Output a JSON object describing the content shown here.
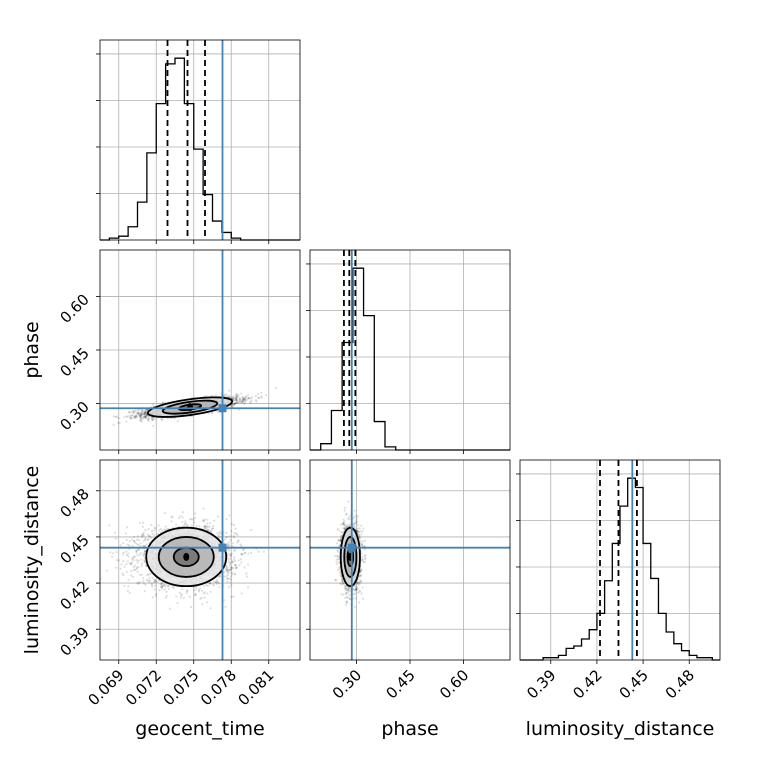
{
  "colors": {
    "truth": "#4682b4",
    "hist": "#000000",
    "grid": "#b0b0b0"
  },
  "chart_data": {
    "type": "corner",
    "parameters": [
      "geocent_time",
      "phase",
      "luminosity_distance"
    ],
    "truths": {
      "geocent_time": 0.0773,
      "phase": 0.287,
      "luminosity_distance": 0.443
    },
    "ranges": {
      "geocent_time": [
        0.0675,
        0.0835
      ],
      "phase": [
        0.17,
        0.73
      ],
      "luminosity_distance": [
        0.37,
        0.5
      ]
    },
    "ticks": {
      "geocent_time": [
        "0.069",
        "0.072",
        "0.075",
        "0.078",
        "0.081"
      ],
      "phase": [
        "0.30",
        "0.45",
        "0.60"
      ],
      "luminosity_distance": [
        "0.39",
        "0.42",
        "0.45",
        "0.48"
      ]
    },
    "quantiles": {
      "geocent_time": [
        0.0729,
        0.0745,
        0.0759
      ],
      "phase": [
        0.265,
        0.28,
        0.297
      ],
      "luminosity_distance": [
        0.422,
        0.434,
        0.446
      ]
    },
    "histograms": {
      "geocent_time": {
        "edges": [
          0.0675,
          0.06825,
          0.069,
          0.06975,
          0.0705,
          0.07125,
          0.072,
          0.07275,
          0.0735,
          0.07425,
          0.075,
          0.07575,
          0.0765,
          0.07725,
          0.078,
          0.07875,
          0.0795,
          0.08025,
          0.081,
          0.08175,
          0.0825,
          0.0835
        ],
        "counts": [
          0,
          1,
          2,
          7,
          20,
          46,
          72,
          93,
          96,
          72,
          48,
          24,
          10,
          4,
          1,
          0,
          0,
          0,
          0,
          0,
          0
        ]
      },
      "phase": {
        "edges": [
          0.17,
          0.2,
          0.23,
          0.26,
          0.29,
          0.32,
          0.35,
          0.38,
          0.41,
          0.44,
          0.47,
          0.5,
          0.53,
          0.56,
          0.59,
          0.62,
          0.65,
          0.68,
          0.71,
          0.73
        ],
        "counts": [
          0,
          4,
          25,
          68,
          115,
          85,
          18,
          2,
          0,
          0,
          0,
          0,
          0,
          0,
          0,
          0,
          0,
          0,
          0
        ]
      },
      "luminosity_distance": {
        "edges": [
          0.37,
          0.375,
          0.38,
          0.385,
          0.39,
          0.395,
          0.4,
          0.405,
          0.41,
          0.415,
          0.42,
          0.425,
          0.43,
          0.435,
          0.44,
          0.445,
          0.45,
          0.455,
          0.46,
          0.465,
          0.47,
          0.475,
          0.48,
          0.485,
          0.49,
          0.495,
          0.5
        ],
        "counts": [
          0,
          0,
          0,
          1,
          1,
          2,
          5,
          6,
          9,
          13,
          20,
          34,
          50,
          66,
          78,
          74,
          50,
          35,
          20,
          12,
          7,
          4,
          2,
          1,
          1,
          0
        ]
      }
    },
    "joint": [
      {
        "x": "geocent_time",
        "y": "phase",
        "mean": [
          0.0747,
          0.29
        ],
        "sd": [
          0.0019,
          0.013
        ],
        "corr": 0.72,
        "contours": [
          {
            "r": [
              0.0009,
              0.007
            ]
          },
          {
            "r": [
              0.0022,
              0.015
            ]
          },
          {
            "r": [
              0.0034,
              0.022
            ]
          }
        ]
      },
      {
        "x": "geocent_time",
        "y": "luminosity_distance",
        "mean": [
          0.0744,
          0.437
        ],
        "sd": [
          0.0019,
          0.0095
        ],
        "corr": 0.0,
        "contours": [
          {
            "r": [
              0.001,
              0.006
            ]
          },
          {
            "r": [
              0.0022,
              0.013
            ]
          },
          {
            "r": [
              0.0032,
              0.019
            ]
          }
        ]
      },
      {
        "x": "phase",
        "y": "luminosity_distance",
        "mean": [
          0.283,
          0.437
        ],
        "sd": [
          0.013,
          0.0095
        ],
        "corr": 0.0,
        "contours": [
          {
            "r": [
              0.008,
              0.006
            ]
          },
          {
            "r": [
              0.017,
              0.013
            ]
          },
          {
            "r": [
              0.027,
              0.019
            ]
          }
        ]
      }
    ]
  }
}
